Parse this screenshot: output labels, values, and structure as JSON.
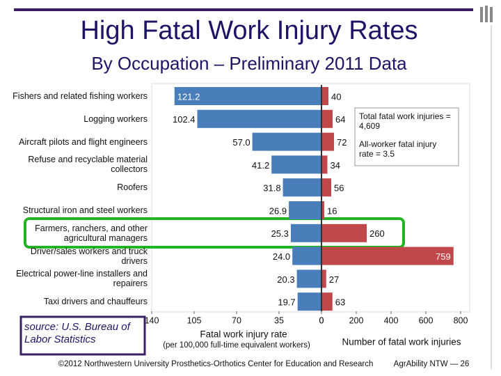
{
  "slide": {
    "title": "High Fatal Work Injury Rates",
    "subtitle": "By Occupation – Preliminary 2011 Data",
    "source": "source: U.S. Bureau of Labor Statistics",
    "footer_left": "©2012 Northwestern University Prosthetics-Orthotics Center for Education and Research",
    "footer_right": "AgrAbility NTW — 26"
  },
  "chart_data": [
    {
      "type": "barh",
      "categories": [
        "Fishers and related fishing workers",
        "Logging workers",
        "Aircraft pilots and flight engineers",
        "Refuse and recyclable material collectors",
        "Roofers",
        "Structural iron and steel workers",
        "Farmers, ranchers, and other agricultural managers",
        "Driver/sales workers and truck drivers",
        "Electrical power-line installers and repairers",
        "Taxi drivers and chauffeurs"
      ],
      "values": [
        121.2,
        102.4,
        57,
        41.2,
        31.8,
        26.9,
        25.3,
        24,
        20.3,
        19.7
      ],
      "value_labels": [
        "121.2",
        "102.4",
        "57.0",
        "41.2",
        "31.8",
        "26.9",
        "25.3",
        "24.0",
        "20.3",
        "19.7"
      ],
      "color": "#4a7ebb",
      "xlim": [
        140,
        0
      ],
      "xticks": [
        140,
        105,
        70,
        35,
        0
      ],
      "xlabel": "Fatal work injury rate",
      "xlabel_note": "(per 100,000 full-time equivalent workers)"
    },
    {
      "type": "barh",
      "values": [
        40,
        64,
        72,
        34,
        56,
        16,
        260,
        759,
        27,
        63
      ],
      "color": "#c0474a",
      "xlim": [
        0,
        800
      ],
      "xticks": [
        0,
        200,
        400,
        600,
        800
      ],
      "xlabel": "Number of fatal work injuries",
      "annotations": [
        "Total fatal work injuries = 4,609",
        "All-worker fatal injury rate = 3.5"
      ]
    }
  ]
}
